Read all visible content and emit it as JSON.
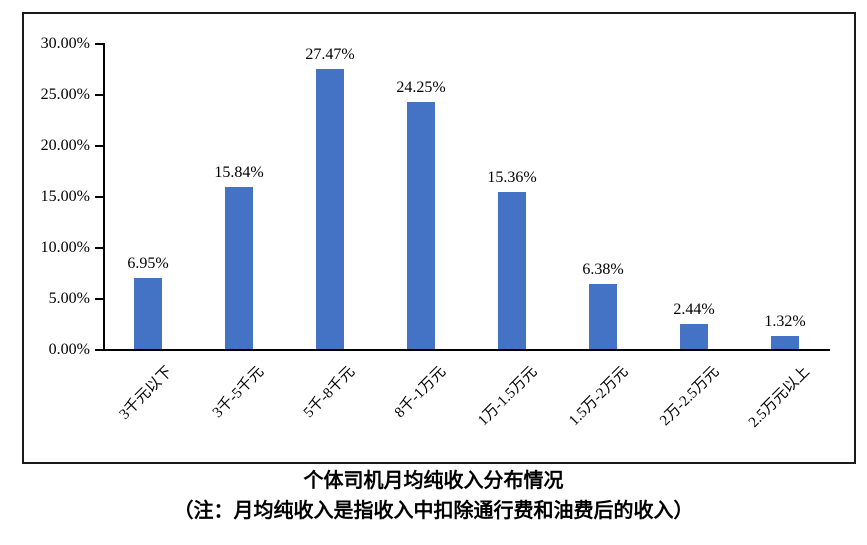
{
  "chart_data": {
    "type": "bar",
    "title": "个体司机月均纯收入分布情况",
    "note": "（注：月均纯收入是指收入中扣除通行费和油费后的收入）",
    "categories": [
      "3千元以下",
      "3千-5千元",
      "5千-8千元",
      "8千-1万元",
      "1万-1.5万元",
      "1.5万-2万元",
      "2万-2.5万元",
      "2.5万元以上"
    ],
    "values": [
      6.95,
      15.84,
      27.47,
      24.25,
      15.36,
      6.38,
      2.44,
      1.32
    ],
    "value_labels": [
      "6.95%",
      "15.84%",
      "27.47%",
      "24.25%",
      "15.36%",
      "6.38%",
      "2.44%",
      "1.32%"
    ],
    "y_tick_values": [
      0,
      5,
      10,
      15,
      20,
      25,
      30
    ],
    "y_tick_labels": [
      "0.00%",
      "5.00%",
      "10.00%",
      "15.00%",
      "20.00%",
      "25.00%",
      "30.00%"
    ],
    "ylim": [
      0,
      30
    ],
    "xlabel": "",
    "ylabel": "",
    "bar_color": "#4472C4",
    "axis_color": "#000000",
    "grid": false,
    "legend": "none"
  }
}
